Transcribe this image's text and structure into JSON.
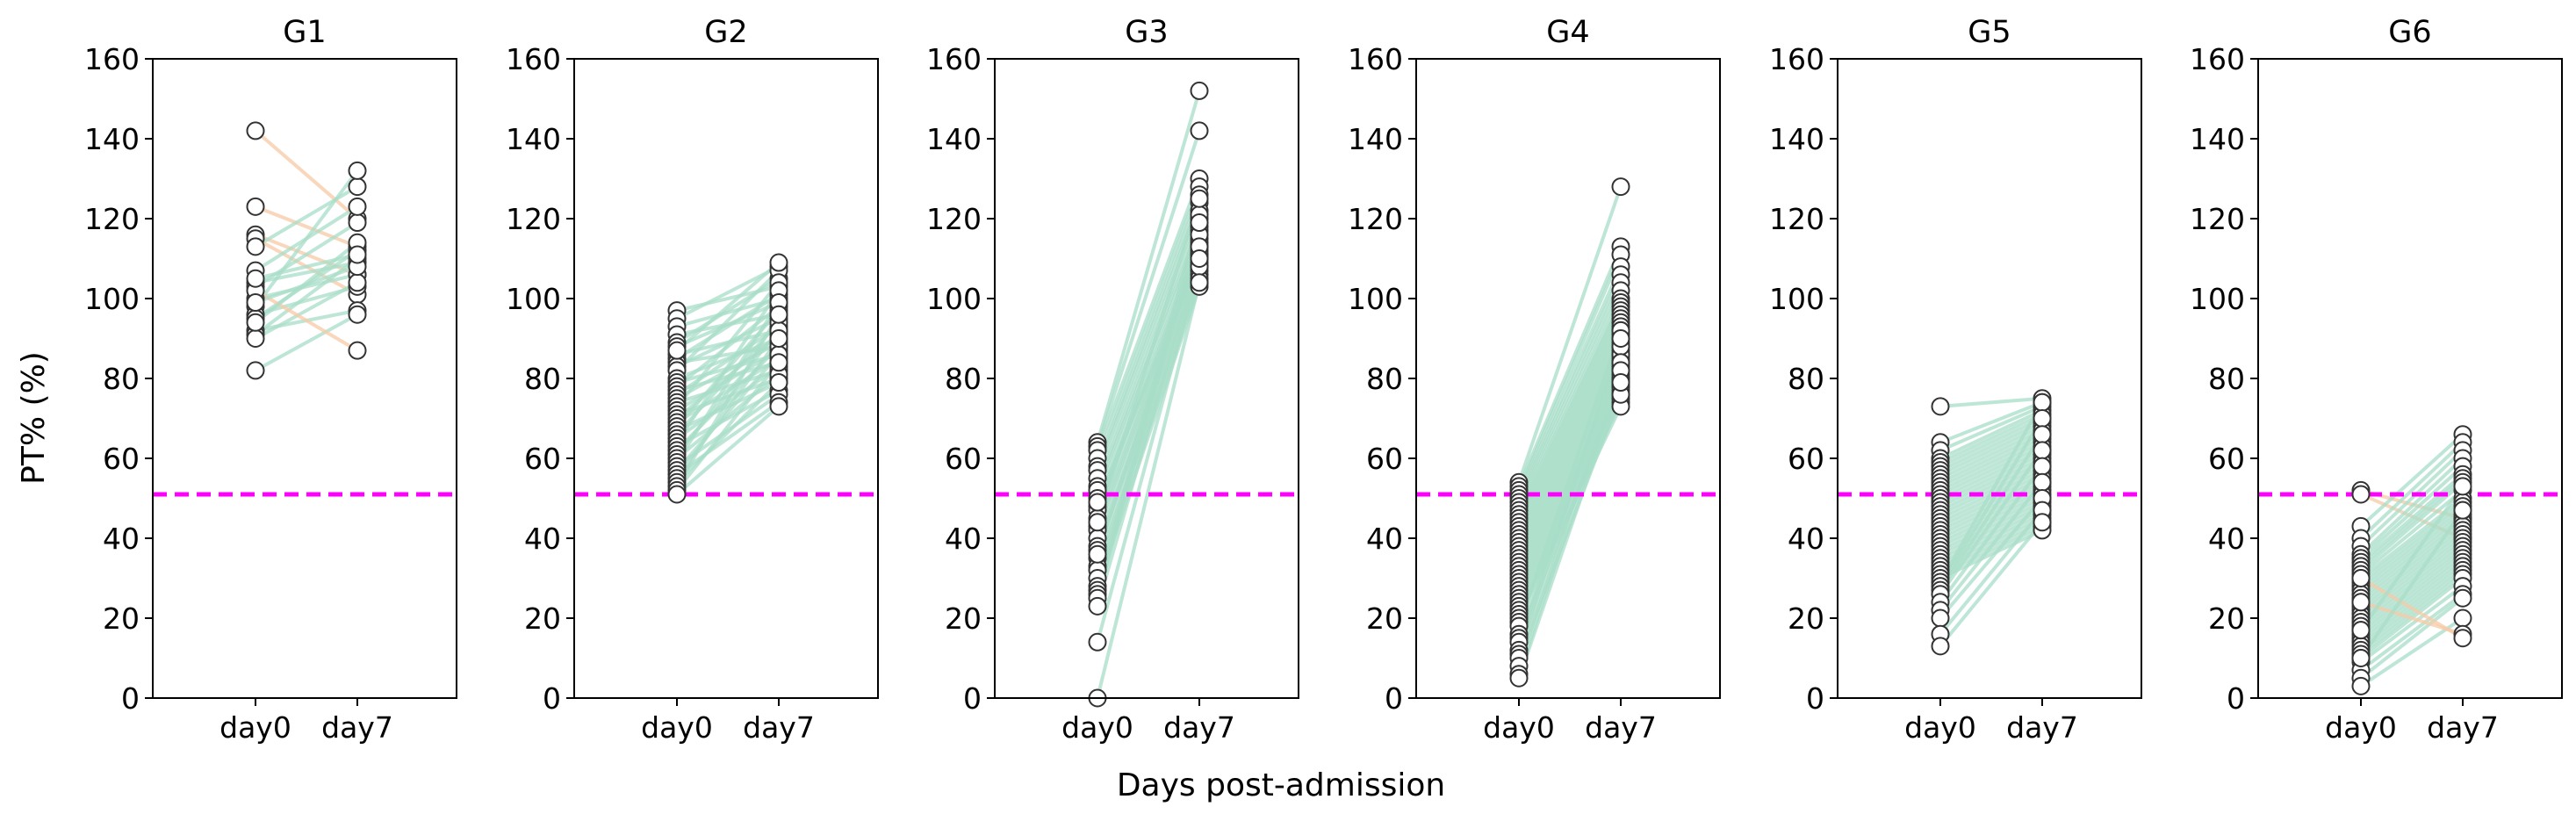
{
  "chart_data": {
    "type": "line",
    "xlabel": "Days post-admission",
    "ylabel": "PT% (%)",
    "categories": [
      "day0",
      "day7"
    ],
    "ylim": [
      0,
      160
    ],
    "yticks": [
      0,
      20,
      40,
      60,
      80,
      100,
      120,
      140,
      160
    ],
    "threshold": {
      "value": 51,
      "color": "#ff00ff",
      "style": "dashed"
    },
    "colors": {
      "improved": "#a8dec8",
      "declined": "#f7c9a6",
      "marker_edge": "#333333",
      "marker_face": "#ffffff"
    },
    "panels": [
      {
        "title": "G1",
        "pairs": [
          [
            142,
            120
          ],
          [
            123,
            113
          ],
          [
            116,
            106
          ],
          [
            115,
            101
          ],
          [
            113,
            128
          ],
          [
            104,
            109
          ],
          [
            103,
            119
          ],
          [
            100,
            106
          ],
          [
            98,
            132
          ],
          [
            96,
            103
          ],
          [
            95,
            112
          ],
          [
            92,
            97
          ],
          [
            91,
            110
          ],
          [
            90,
            104
          ],
          [
            82,
            96
          ],
          [
            107,
            123
          ],
          [
            102,
            87
          ],
          [
            94,
            114
          ],
          [
            99,
            108
          ],
          [
            105,
            111
          ]
        ]
      },
      {
        "title": "G2",
        "pairs": [
          [
            97,
            103
          ],
          [
            95,
            108
          ],
          [
            93,
            100
          ],
          [
            91,
            96
          ],
          [
            89,
            105
          ],
          [
            88,
            99
          ],
          [
            86,
            92
          ],
          [
            85,
            101
          ],
          [
            84,
            88
          ],
          [
            83,
            95
          ],
          [
            82,
            107
          ],
          [
            80,
            90
          ],
          [
            79,
            86
          ],
          [
            78,
            98
          ],
          [
            77,
            84
          ],
          [
            76,
            93
          ],
          [
            75,
            89
          ],
          [
            74,
            82
          ],
          [
            73,
            104
          ],
          [
            72,
            87
          ],
          [
            71,
            80
          ],
          [
            70,
            91
          ],
          [
            69,
            85
          ],
          [
            68,
            97
          ],
          [
            67,
            79
          ],
          [
            66,
            94
          ],
          [
            65,
            83
          ],
          [
            64,
            102
          ],
          [
            63,
            77
          ],
          [
            62,
            88
          ],
          [
            61,
            92
          ],
          [
            60,
            81
          ],
          [
            59,
            99
          ],
          [
            58,
            76
          ],
          [
            57,
            86
          ],
          [
            56,
            74
          ],
          [
            55,
            90
          ],
          [
            54,
            79
          ],
          [
            53,
            96
          ],
          [
            52,
            84
          ],
          [
            51,
            73
          ],
          [
            87,
            109
          ]
        ]
      },
      {
        "title": "G3",
        "pairs": [
          [
            64,
            152
          ],
          [
            63,
            142
          ],
          [
            62,
            130
          ],
          [
            60,
            128
          ],
          [
            58,
            126
          ],
          [
            57,
            124
          ],
          [
            55,
            122
          ],
          [
            53,
            120
          ],
          [
            52,
            118
          ],
          [
            50,
            117
          ],
          [
            48,
            115
          ],
          [
            47,
            114
          ],
          [
            45,
            113
          ],
          [
            43,
            112
          ],
          [
            42,
            111
          ],
          [
            40,
            110
          ],
          [
            38,
            109
          ],
          [
            37,
            108
          ],
          [
            35,
            107
          ],
          [
            33,
            106
          ],
          [
            32,
            105
          ],
          [
            30,
            104
          ],
          [
            28,
            103
          ],
          [
            27,
            121
          ],
          [
            26,
            116
          ],
          [
            25,
            119
          ],
          [
            23,
            111
          ],
          [
            14,
            108
          ],
          [
            0,
            104
          ],
          [
            44,
            125
          ],
          [
            36,
            113
          ],
          [
            49,
            110
          ]
        ]
      },
      {
        "title": "G4",
        "pairs": [
          [
            54,
            128
          ],
          [
            53,
            113
          ],
          [
            52,
            111
          ],
          [
            51,
            108
          ],
          [
            50,
            106
          ],
          [
            49,
            104
          ],
          [
            48,
            102
          ],
          [
            47,
            100
          ],
          [
            46,
            99
          ],
          [
            45,
            98
          ],
          [
            44,
            97
          ],
          [
            43,
            96
          ],
          [
            42,
            95
          ],
          [
            41,
            94
          ],
          [
            40,
            93
          ],
          [
            39,
            92
          ],
          [
            38,
            91
          ],
          [
            37,
            90
          ],
          [
            36,
            89
          ],
          [
            35,
            88
          ],
          [
            34,
            87
          ],
          [
            33,
            86
          ],
          [
            32,
            85
          ],
          [
            31,
            84
          ],
          [
            30,
            83
          ],
          [
            29,
            82
          ],
          [
            28,
            81
          ],
          [
            27,
            80
          ],
          [
            26,
            79
          ],
          [
            25,
            78
          ],
          [
            24,
            77
          ],
          [
            23,
            76
          ],
          [
            22,
            75
          ],
          [
            21,
            74
          ],
          [
            20,
            73
          ],
          [
            19,
            86
          ],
          [
            18,
            92
          ],
          [
            16,
            84
          ],
          [
            15,
            78
          ],
          [
            14,
            88
          ],
          [
            12,
            80
          ],
          [
            11,
            90
          ],
          [
            10,
            76
          ],
          [
            8,
            84
          ],
          [
            6,
            82
          ],
          [
            5,
            79
          ]
        ]
      },
      {
        "title": "G5",
        "pairs": [
          [
            73,
            75
          ],
          [
            64,
            74
          ],
          [
            62,
            73
          ],
          [
            60,
            72
          ],
          [
            59,
            71
          ],
          [
            58,
            70
          ],
          [
            57,
            69
          ],
          [
            56,
            68
          ],
          [
            55,
            67
          ],
          [
            54,
            66
          ],
          [
            53,
            65
          ],
          [
            52,
            64
          ],
          [
            51,
            63
          ],
          [
            50,
            62
          ],
          [
            49,
            61
          ],
          [
            48,
            60
          ],
          [
            47,
            59
          ],
          [
            46,
            58
          ],
          [
            45,
            57
          ],
          [
            44,
            56
          ],
          [
            43,
            55
          ],
          [
            42,
            54
          ],
          [
            41,
            53
          ],
          [
            40,
            52
          ],
          [
            39,
            51
          ],
          [
            38,
            50
          ],
          [
            37,
            49
          ],
          [
            36,
            48
          ],
          [
            35,
            47
          ],
          [
            34,
            46
          ],
          [
            33,
            45
          ],
          [
            32,
            44
          ],
          [
            31,
            43
          ],
          [
            30,
            42
          ],
          [
            29,
            74
          ],
          [
            28,
            70
          ],
          [
            27,
            66
          ],
          [
            26,
            62
          ],
          [
            24,
            58
          ],
          [
            22,
            54
          ],
          [
            20,
            50
          ],
          [
            16,
            47
          ],
          [
            13,
            44
          ]
        ]
      },
      {
        "title": "G6",
        "pairs": [
          [
            52,
            45
          ],
          [
            51,
            40
          ],
          [
            43,
            66
          ],
          [
            40,
            64
          ],
          [
            38,
            62
          ],
          [
            36,
            60
          ],
          [
            35,
            58
          ],
          [
            34,
            56
          ],
          [
            33,
            55
          ],
          [
            32,
            54
          ],
          [
            31,
            52
          ],
          [
            30,
            50
          ],
          [
            29,
            49
          ],
          [
            28,
            48
          ],
          [
            27,
            47
          ],
          [
            26,
            46
          ],
          [
            25,
            45
          ],
          [
            24,
            44
          ],
          [
            23,
            43
          ],
          [
            22,
            42
          ],
          [
            21,
            41
          ],
          [
            20,
            40
          ],
          [
            19,
            39
          ],
          [
            18,
            38
          ],
          [
            17,
            37
          ],
          [
            16,
            36
          ],
          [
            15,
            35
          ],
          [
            14,
            34
          ],
          [
            13,
            33
          ],
          [
            12,
            32
          ],
          [
            11,
            31
          ],
          [
            10,
            30
          ],
          [
            9,
            28
          ],
          [
            7,
            26
          ],
          [
            5,
            25
          ],
          [
            3,
            20
          ],
          [
            24,
            16
          ],
          [
            30,
            15
          ],
          [
            17,
            53
          ],
          [
            10,
            47
          ]
        ]
      }
    ]
  }
}
